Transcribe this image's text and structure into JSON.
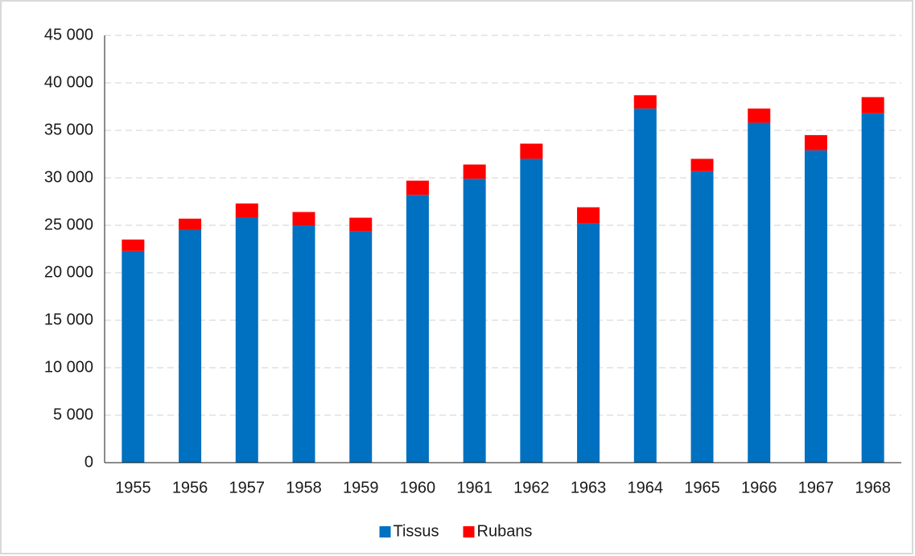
{
  "chart_data": {
    "type": "stacked_bar",
    "categories": [
      "1955",
      "1956",
      "1957",
      "1958",
      "1959",
      "1960",
      "1961",
      "1962",
      "1963",
      "1964",
      "1965",
      "1966",
      "1967",
      "1968"
    ],
    "series": [
      {
        "name": "Tissus",
        "color": "#0070c0",
        "values": [
          22300,
          24500,
          25800,
          25000,
          24400,
          28200,
          29900,
          32000,
          25200,
          37300,
          30700,
          35800,
          32900,
          36800
        ]
      },
      {
        "name": "Rubans",
        "color": "#ff0000",
        "values": [
          1200,
          1200,
          1500,
          1400,
          1400,
          1500,
          1500,
          1600,
          1700,
          1400,
          1300,
          1500,
          1600,
          1700
        ]
      }
    ],
    "ylim": [
      0,
      45000
    ],
    "yticks": [
      {
        "value": 0,
        "label": "0"
      },
      {
        "value": 5000,
        "label": "5 000"
      },
      {
        "value": 10000,
        "label": "10 000"
      },
      {
        "value": 15000,
        "label": "15 000"
      },
      {
        "value": 20000,
        "label": "20 000"
      },
      {
        "value": 25000,
        "label": "25 000"
      },
      {
        "value": 30000,
        "label": "30 000"
      },
      {
        "value": 35000,
        "label": "35 000"
      },
      {
        "value": 40000,
        "label": "40 000"
      },
      {
        "value": 45000,
        "label": "45 000"
      }
    ],
    "grid": true,
    "legend": "bottom"
  }
}
